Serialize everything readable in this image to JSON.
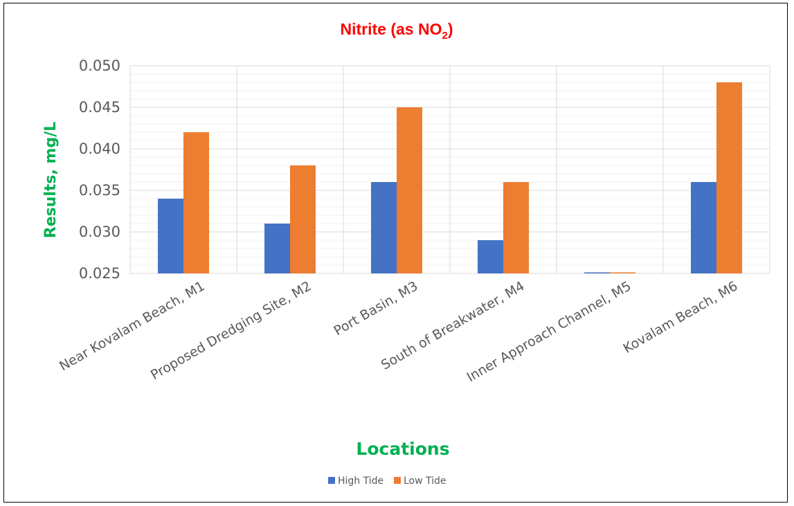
{
  "chart_data": {
    "type": "bar",
    "title": "Nitrite (as NO",
    "title_subscript": "2",
    "title_suffix": ")",
    "xlabel": "Locations",
    "ylabel": "Results, mg/L",
    "categories": [
      "Near Kovalam Beach, M1",
      "Proposed Dredging Site, M2",
      "Port Basin, M3",
      "South of Breakwater, M4",
      "Inner Approach Channel, M5",
      "Kovalam Beach, M6"
    ],
    "series": [
      {
        "name": "High Tide",
        "color": "#4472C4",
        "values": [
          0.034,
          0.031,
          0.036,
          0.029,
          0.025,
          0.036
        ]
      },
      {
        "name": "Low Tide",
        "color": "#ED7D31",
        "values": [
          0.042,
          0.038,
          0.045,
          0.036,
          0.025,
          0.048
        ]
      }
    ],
    "ylim": [
      0.025,
      0.05
    ],
    "yticks": [
      "0.025",
      "0.030",
      "0.035",
      "0.040",
      "0.045",
      "0.050"
    ],
    "grid": true,
    "legend_position": "bottom",
    "colors": {
      "title": "#FF0000",
      "axis_labels": "#00B050",
      "tick_labels": "#595959",
      "gridline": "#D9D9D9"
    }
  }
}
